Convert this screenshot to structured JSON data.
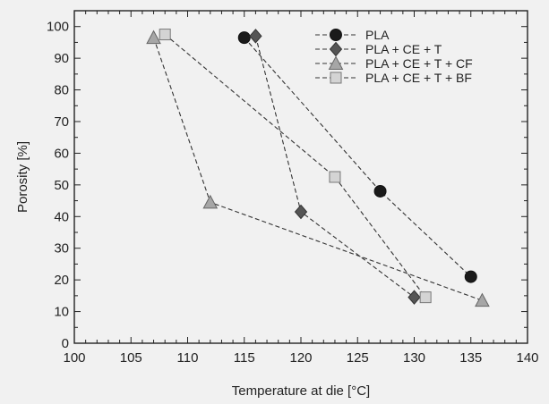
{
  "chart_data": {
    "type": "scatter",
    "title": "",
    "xlabel": "Temperature at die [°C]",
    "ylabel": "Porosity [%]",
    "xlim": [
      100,
      140
    ],
    "ylim": [
      0,
      105
    ],
    "x_ticks": [
      100,
      105,
      110,
      115,
      120,
      125,
      130,
      135,
      140
    ],
    "y_ticks": [
      0,
      10,
      20,
      30,
      40,
      50,
      60,
      70,
      80,
      90,
      100
    ],
    "grid": false,
    "legend_position": "top-right",
    "line_style": "dashed",
    "series": [
      {
        "name": "PLA",
        "marker": "circle",
        "color": "#1a1a1a",
        "x": [
          115,
          127,
          135
        ],
        "y": [
          96.5,
          48,
          21
        ]
      },
      {
        "name": "PLA + CE + T",
        "marker": "diamond",
        "color": "#555555",
        "x": [
          116,
          120,
          130
        ],
        "y": [
          97,
          41.5,
          14.5
        ]
      },
      {
        "name": "PLA + CE + T + CF",
        "marker": "triangle",
        "color": "#a6a6a6",
        "x": [
          107,
          112,
          136
        ],
        "y": [
          96.5,
          44.5,
          13.5
        ]
      },
      {
        "name": "PLA + CE + T + BF",
        "marker": "square",
        "color": "#d4d4d4",
        "x": [
          108,
          123,
          131
        ],
        "y": [
          97.5,
          52.5,
          14.5
        ]
      }
    ]
  }
}
